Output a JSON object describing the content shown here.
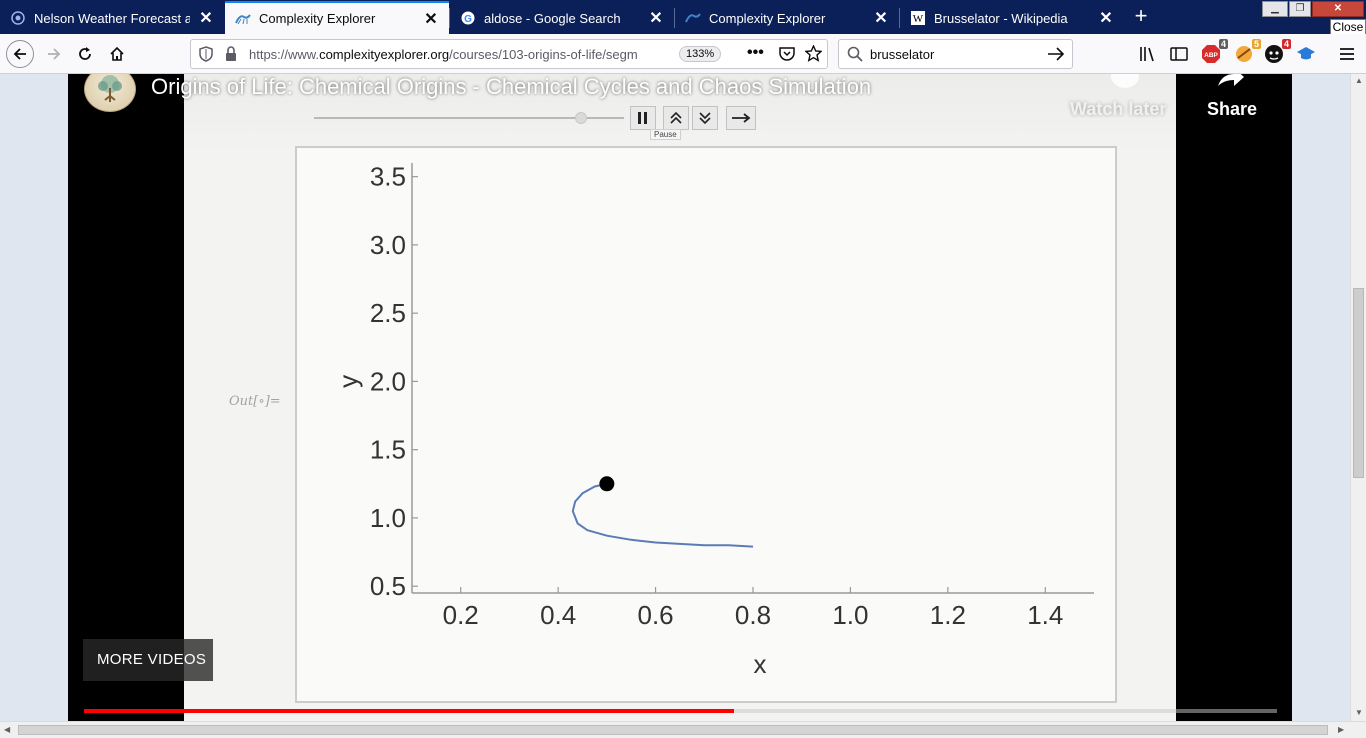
{
  "tabs": [
    {
      "title": "Nelson Weather Forecast and C",
      "icon": "weather-icon",
      "active": false
    },
    {
      "title": "Complexity Explorer",
      "icon": "complexity-icon",
      "active": true
    },
    {
      "title": "aldose - Google Search",
      "icon": "google-icon",
      "active": false
    },
    {
      "title": "Complexity Explorer",
      "icon": "complexity-icon",
      "active": false
    },
    {
      "title": "Brusselator - Wikipedia",
      "icon": "wikipedia-icon",
      "active": false
    }
  ],
  "window": {
    "close_tooltip": "Close"
  },
  "navbar": {
    "url_prefix": "https://www.",
    "url_domain": "complexityexplorer.org",
    "url_path": "/courses/103-origins-of-life/segm",
    "zoom": "133%",
    "search_value": "brusselator",
    "badges": {
      "abp": "4",
      "ext2": "5",
      "ext3": "4"
    }
  },
  "video": {
    "title": "Origins of Life: Chemical Origins - Chemical Cycles and Chaos Simulation",
    "watch_later": "Watch later",
    "share": "Share",
    "more_videos": "MORE VIDEOS",
    "progress": 0.545,
    "pause_tooltip": "Pause",
    "out_label": "Out[∘]=",
    "slider_value": 0.86
  },
  "chart_data": {
    "type": "line",
    "xlabel": "x",
    "ylabel": "y",
    "xlim": [
      0.1,
      1.5
    ],
    "ylim": [
      0.45,
      3.6
    ],
    "xticks": [
      0.2,
      0.4,
      0.6,
      0.8,
      1.0,
      1.2,
      1.4
    ],
    "yticks": [
      0.5,
      1.0,
      1.5,
      2.0,
      2.5,
      3.0,
      3.5
    ],
    "xtick_labels": [
      "0.2",
      "0.4",
      "0.6",
      "0.8",
      "1.0",
      "1.2",
      "1.4"
    ],
    "ytick_labels": [
      "0.5",
      "1.0",
      "1.5",
      "2.0",
      "2.5",
      "3.0",
      "3.5"
    ],
    "series": [
      {
        "x": [
          0.8,
          0.75,
          0.7,
          0.65,
          0.6,
          0.55,
          0.5,
          0.46,
          0.44,
          0.43,
          0.435,
          0.45,
          0.475,
          0.5
        ],
        "y": [
          0.79,
          0.8,
          0.8,
          0.81,
          0.82,
          0.84,
          0.87,
          0.91,
          0.96,
          1.05,
          1.12,
          1.18,
          1.23,
          1.25
        ],
        "color": "#5b7bb5"
      }
    ],
    "marker": {
      "x": 0.5,
      "y": 1.25,
      "color": "#000000"
    }
  }
}
